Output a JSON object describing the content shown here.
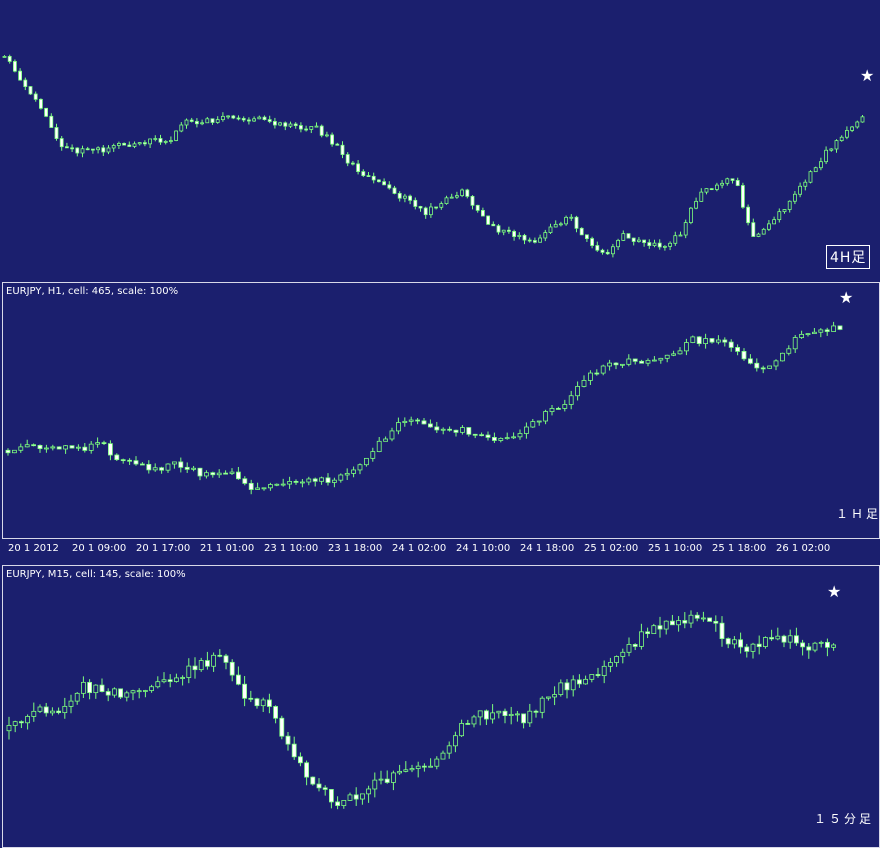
{
  "colors": {
    "background": "#1b1f6e",
    "up_candle": "#1b1f6e",
    "down_candle": "#ffffff",
    "wick": "#7dff7d",
    "text": "#ffffff",
    "frame": "#d8d8e8"
  },
  "chart_data": [
    {
      "type": "candlestick",
      "symbol": "EURJPY",
      "timeframe": "H4",
      "panel_label": "4H足",
      "marker": "★",
      "close_path": [
        97.6,
        97.3,
        97.0,
        96.6,
        96.5,
        96.52,
        96.55,
        96.6,
        96.62,
        96.62,
        96.85,
        96.85,
        96.9,
        96.88,
        96.88,
        96.82,
        96.8,
        96.78,
        96.6,
        96.35,
        96.2,
        96.08,
        95.95,
        95.8,
        95.95,
        96.05,
        95.8,
        95.58,
        95.55,
        95.45,
        95.65,
        95.75,
        95.45,
        95.35,
        95.55,
        95.45,
        95.42,
        95.55,
        96.0,
        96.1,
        96.2,
        95.5,
        95.7,
        95.9,
        96.2,
        96.5,
        96.7,
        96.9
      ],
      "ylim": [
        95.2,
        97.9
      ]
    },
    {
      "type": "candlestick",
      "symbol": "EURJPY",
      "timeframe": "H1",
      "header": "EURJPY, H1, cell: 465, scale: 100%",
      "panel_label": "１Ｈ足",
      "marker": "★",
      "close_path": [
        100.15,
        100.18,
        100.16,
        100.2,
        100.12,
        100.28,
        99.98,
        99.94,
        99.9,
        99.96,
        99.85,
        99.82,
        99.88,
        99.62,
        99.66,
        99.7,
        99.72,
        99.74,
        99.76,
        99.9,
        100.25,
        100.45,
        100.52,
        100.38,
        100.42,
        100.37,
        100.32,
        100.28,
        100.45,
        100.62,
        100.75,
        101.0,
        101.25,
        101.32,
        101.34,
        101.36,
        101.42,
        101.6,
        101.58,
        101.54,
        101.3,
        101.22,
        101.45,
        101.7,
        101.75,
        101.78
      ],
      "ylim": [
        99.3,
        102.1
      ],
      "x_tick_labels": [
        "20 1 2012",
        "20 1 09:00",
        "20 1 17:00",
        "21 1 01:00",
        "23 1 10:00",
        "23 1 18:00",
        "24 1 02:00",
        "24 1 10:00",
        "24 1 18:00",
        "25 1 02:00",
        "25 1 10:00",
        "25 1 18:00",
        "26 1 02:00"
      ]
    },
    {
      "type": "candlestick",
      "symbol": "EURJPY",
      "timeframe": "M15",
      "header": "EURJPY, M15, cell: 145, scale: 100%",
      "panel_label": "１５分足",
      "marker": "★",
      "close_path": [
        101.2,
        101.35,
        101.3,
        101.5,
        101.48,
        101.45,
        101.5,
        101.55,
        101.65,
        101.72,
        101.45,
        101.35,
        101.05,
        100.8,
        100.68,
        100.75,
        100.85,
        100.95,
        100.92,
        101.2,
        101.3,
        101.32,
        101.28,
        101.45,
        101.55,
        101.62,
        101.72,
        101.9,
        101.95,
        102.0,
        101.92,
        101.78,
        101.82,
        101.85,
        101.8,
        101.82
      ],
      "ylim": [
        100.55,
        102.15
      ]
    }
  ]
}
